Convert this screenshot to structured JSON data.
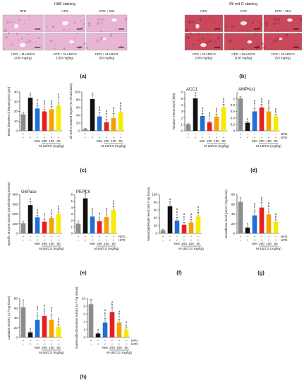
{
  "colors": {
    "gray": "#8c8c8c",
    "black": "#111111",
    "blue": "#1f6fd6",
    "red": "#e81f1f",
    "orange": "#f5a000",
    "yellow": "#f7ea00",
    "he_tissue": "#e8b6d4",
    "oro_tissue": "#c9485b"
  },
  "panel_a": {
    "title": "H&E staining",
    "label": "(a)",
    "top_labels": [
      "NFD",
      "HFD",
      "HFD + Met"
    ],
    "bottom_captions": [
      "HFD + M-LB/CS\n(200 mg/kg)",
      "HFD + M-LB/CS\n(100 mg/kg)",
      "HFD + M-LB/CS\n(50 mg/kg)"
    ]
  },
  "panel_b": {
    "title": "Oil red O staining",
    "label": "(b)",
    "top_labels": [
      "NFD",
      "HFD",
      "HFD + Met"
    ],
    "bottom_captions": [
      "HFD + M-LB/CS\n(200 mg/kg)",
      "HFD + M-LB/CS\n(100 mg/kg)",
      "HFD + M-LB/CS\n(50 mg/kg)"
    ]
  },
  "treatment": {
    "nfd_row": [
      "+",
      "–",
      "–",
      "–",
      "–",
      "–"
    ],
    "hfd_row": [
      "–",
      "+",
      "+",
      "+",
      "+",
      "+"
    ],
    "dose_row": [
      "",
      "",
      "Met",
      "200",
      "100",
      "50"
    ],
    "nfd_label": "NFD",
    "hfd_label": "HFD",
    "group_label": "M-LB/CS (mg/kg)"
  },
  "panel_labels": {
    "c": "(c)",
    "d": "(d)",
    "e": "(e)",
    "f": "(f)",
    "g": "(g)",
    "h": "(h)"
  },
  "chart_data": [
    {
      "id": "c1",
      "type": "bar",
      "title": "",
      "xlabel": "",
      "ylabel": "Mean diameter of hepatocytes (μm)",
      "ylim": [
        0,
        40
      ],
      "ticks": [
        0,
        10,
        20,
        30,
        40
      ],
      "values": [
        17,
        34,
        23,
        20,
        22,
        26
      ],
      "errors": [
        2,
        2,
        3,
        2,
        3,
        3
      ],
      "letters": [
        "",
        "a",
        "a\nb",
        "a\nb\nc",
        "a\nb",
        "a\nb\nc"
      ]
    },
    {
      "id": "c2",
      "type": "bar",
      "title": "",
      "xlabel": "",
      "ylabel": "Oil red O-stained region (% of total area)",
      "ylim": [
        0,
        100
      ],
      "ticks": [
        0,
        20,
        40,
        60,
        80,
        100
      ],
      "values": [
        5,
        82,
        37,
        22,
        33,
        48
      ],
      "errors": [
        2,
        8,
        10,
        8,
        12,
        10
      ],
      "letters": [
        "",
        "a",
        "a\nb",
        "a\nb\nc",
        "a\nb",
        "a\nb"
      ]
    },
    {
      "id": "d1",
      "type": "bar",
      "title": "ACC1",
      "xlabel": "",
      "ylabel": "Relative mRNA level (fold)",
      "ylim": [
        0,
        6
      ],
      "ticks": [
        0,
        1,
        2,
        3,
        4,
        5,
        6
      ],
      "values": [
        1.0,
        5.0,
        2.3,
        1.3,
        2.2,
        3.6
      ],
      "errors": [
        0.1,
        0.5,
        0.4,
        0.2,
        0.4,
        0.5
      ],
      "letters": [
        "",
        "a",
        "a\nb",
        "a\nb\nc",
        "a\nb",
        "a\nb"
      ]
    },
    {
      "id": "d2",
      "type": "bar",
      "title": "AMPKα1",
      "xlabel": "",
      "ylabel": "",
      "ylim": [
        0,
        1.2
      ],
      "ticks": [
        0,
        0.2,
        0.4,
        0.6,
        0.8,
        1.0
      ],
      "values": [
        1.0,
        0.25,
        0.6,
        0.72,
        0.6,
        0.45
      ],
      "errors": [
        0.05,
        0.04,
        0.08,
        0.1,
        0.08,
        0.06
      ],
      "letters": [
        "",
        "a",
        "a\nb\nc",
        "a\nb",
        "a\nb\nd",
        "a\nb"
      ]
    },
    {
      "id": "e1",
      "type": "bar",
      "title": "G6Pase",
      "xlabel": "",
      "ylabel": "Specific enzyme activity (nmol/min/mg protein)",
      "ylim": [
        0,
        400
      ],
      "ticks": [
        0,
        100,
        200,
        300,
        400
      ],
      "values": [
        105,
        290,
        165,
        120,
        160,
        200
      ],
      "errors": [
        20,
        40,
        20,
        20,
        20,
        25
      ],
      "letters": [
        "",
        "a",
        "a\nb",
        "b\nc",
        "a\nb",
        "a\nb"
      ]
    },
    {
      "id": "e2",
      "type": "bar",
      "title": "PEPCK",
      "xlabel": "",
      "ylabel": "",
      "ylim": [
        0,
        6
      ],
      "ticks": [
        0,
        1,
        2,
        3,
        4,
        5,
        6
      ],
      "values": [
        1.5,
        5.4,
        2.6,
        1.9,
        2.5,
        3.6
      ],
      "errors": [
        0.4,
        0.8,
        0.4,
        0.3,
        0.5,
        0.6
      ],
      "letters": [
        "",
        "a",
        "a\nb",
        "b\nc",
        "a\nb",
        "a\nb"
      ]
    },
    {
      "id": "f1",
      "type": "bar",
      "title": "",
      "xlabel": "",
      "ylabel": "Malondialdehyde level (nM / mg tissue)",
      "ylim": [
        0,
        100
      ],
      "ticks": [
        0,
        20,
        40,
        60,
        80,
        100
      ],
      "values": [
        8,
        70,
        33,
        22,
        28,
        44
      ],
      "errors": [
        2,
        12,
        8,
        6,
        8,
        10
      ],
      "letters": [
        "",
        "a",
        "a\nb\nc",
        "a\nb\nc",
        "a\nb",
        "a\nb"
      ]
    },
    {
      "id": "g1",
      "type": "bar",
      "title": "",
      "xlabel": "",
      "ylabel": "Glutathione level (μmol / mg tissue)",
      "ylim": [
        0,
        80
      ],
      "ticks": [
        0,
        20,
        40,
        60,
        80
      ],
      "values": [
        65,
        12,
        37,
        53,
        39,
        24
      ],
      "errors": [
        8,
        3,
        7,
        10,
        6,
        5
      ],
      "letters": [
        "",
        "a",
        "a\nb\nc",
        "a\nb",
        "a\nb\nc",
        "a\nb"
      ]
    },
    {
      "id": "h1",
      "type": "bar",
      "title": "",
      "xlabel": "",
      "ylabel": "Catalase activity (U / mg tissue)",
      "ylim": [
        0,
        80
      ],
      "ticks": [
        0,
        20,
        40,
        60,
        80
      ],
      "values": [
        62,
        10,
        36,
        44,
        36,
        22
      ],
      "errors": [
        15,
        3,
        10,
        10,
        8,
        5
      ],
      "letters": [
        "",
        "a",
        "a\nb\nc",
        "b\nc",
        "a\nb\nc",
        "a\nb"
      ]
    },
    {
      "id": "h2",
      "type": "bar",
      "title": "",
      "xlabel": "",
      "ylabel": "Superoxide dismutase activity (U / mg tissue)",
      "ylim": [
        0,
        10
      ],
      "ticks": [
        0,
        2,
        4,
        6,
        8,
        10
      ],
      "values": [
        8.5,
        1.0,
        3.8,
        6.5,
        3.8,
        2.0
      ],
      "errors": [
        1.2,
        0.4,
        1.0,
        1.2,
        0.8,
        0.5
      ],
      "letters": [
        "",
        "a",
        "a\nb\nc",
        "a\nb",
        "a\nb\nc",
        "a\nb"
      ]
    }
  ]
}
